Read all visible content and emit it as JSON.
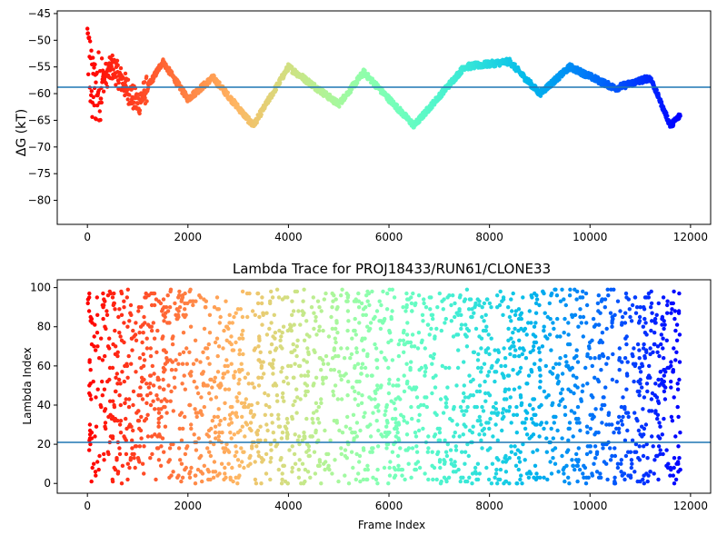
{
  "chart_data": [
    {
      "type": "scatter",
      "title": "",
      "xlabel": "",
      "ylabel": "ΔG (kT)",
      "xlim": [
        -600,
        12400
      ],
      "ylim": [
        -84.5,
        -44.5
      ],
      "xticks": [
        0,
        2000,
        4000,
        6000,
        8000,
        10000,
        12000
      ],
      "yticks": [
        -80,
        -75,
        -70,
        -65,
        -60,
        -55,
        -50,
        -45
      ],
      "hline": -58.8,
      "hline_color": "#1f77b4",
      "colormap": "rainbow (frame index: red at 0, violet at 11800)",
      "grid": false,
      "series_points": [
        {
          "x": 0,
          "y": -50
        },
        {
          "x": 100,
          "y": -60
        },
        {
          "x": 500,
          "y": -55
        },
        {
          "x": 1000,
          "y": -62
        },
        {
          "x": 1500,
          "y": -54
        },
        {
          "x": 2000,
          "y": -61
        },
        {
          "x": 2500,
          "y": -57
        },
        {
          "x": 3300,
          "y": -66
        },
        {
          "x": 4000,
          "y": -55
        },
        {
          "x": 5000,
          "y": -62
        },
        {
          "x": 5500,
          "y": -56
        },
        {
          "x": 6500,
          "y": -66
        },
        {
          "x": 7500,
          "y": -55
        },
        {
          "x": 8400,
          "y": -54
        },
        {
          "x": 9000,
          "y": -60
        },
        {
          "x": 9600,
          "y": -55
        },
        {
          "x": 10500,
          "y": -59
        },
        {
          "x": 11200,
          "y": -57
        },
        {
          "x": 11600,
          "y": -66
        },
        {
          "x": 11800,
          "y": -64
        }
      ]
    },
    {
      "type": "scatter",
      "title": "Lambda Trace for PROJ18433/RUN61/CLONE33",
      "xlabel": "Frame Index",
      "ylabel": "Lambda Index",
      "xlim": [
        -600,
        12400
      ],
      "ylim": [
        -5,
        104
      ],
      "xticks": [
        0,
        2000,
        4000,
        6000,
        8000,
        10000,
        12000
      ],
      "yticks": [
        0,
        20,
        40,
        60,
        80,
        100
      ],
      "hline": 21,
      "hline_color": "#1f77b4",
      "colormap": "rainbow (frame index: red at 0, violet at 11800)",
      "grid": false,
      "value_range": [
        0,
        99
      ]
    }
  ]
}
